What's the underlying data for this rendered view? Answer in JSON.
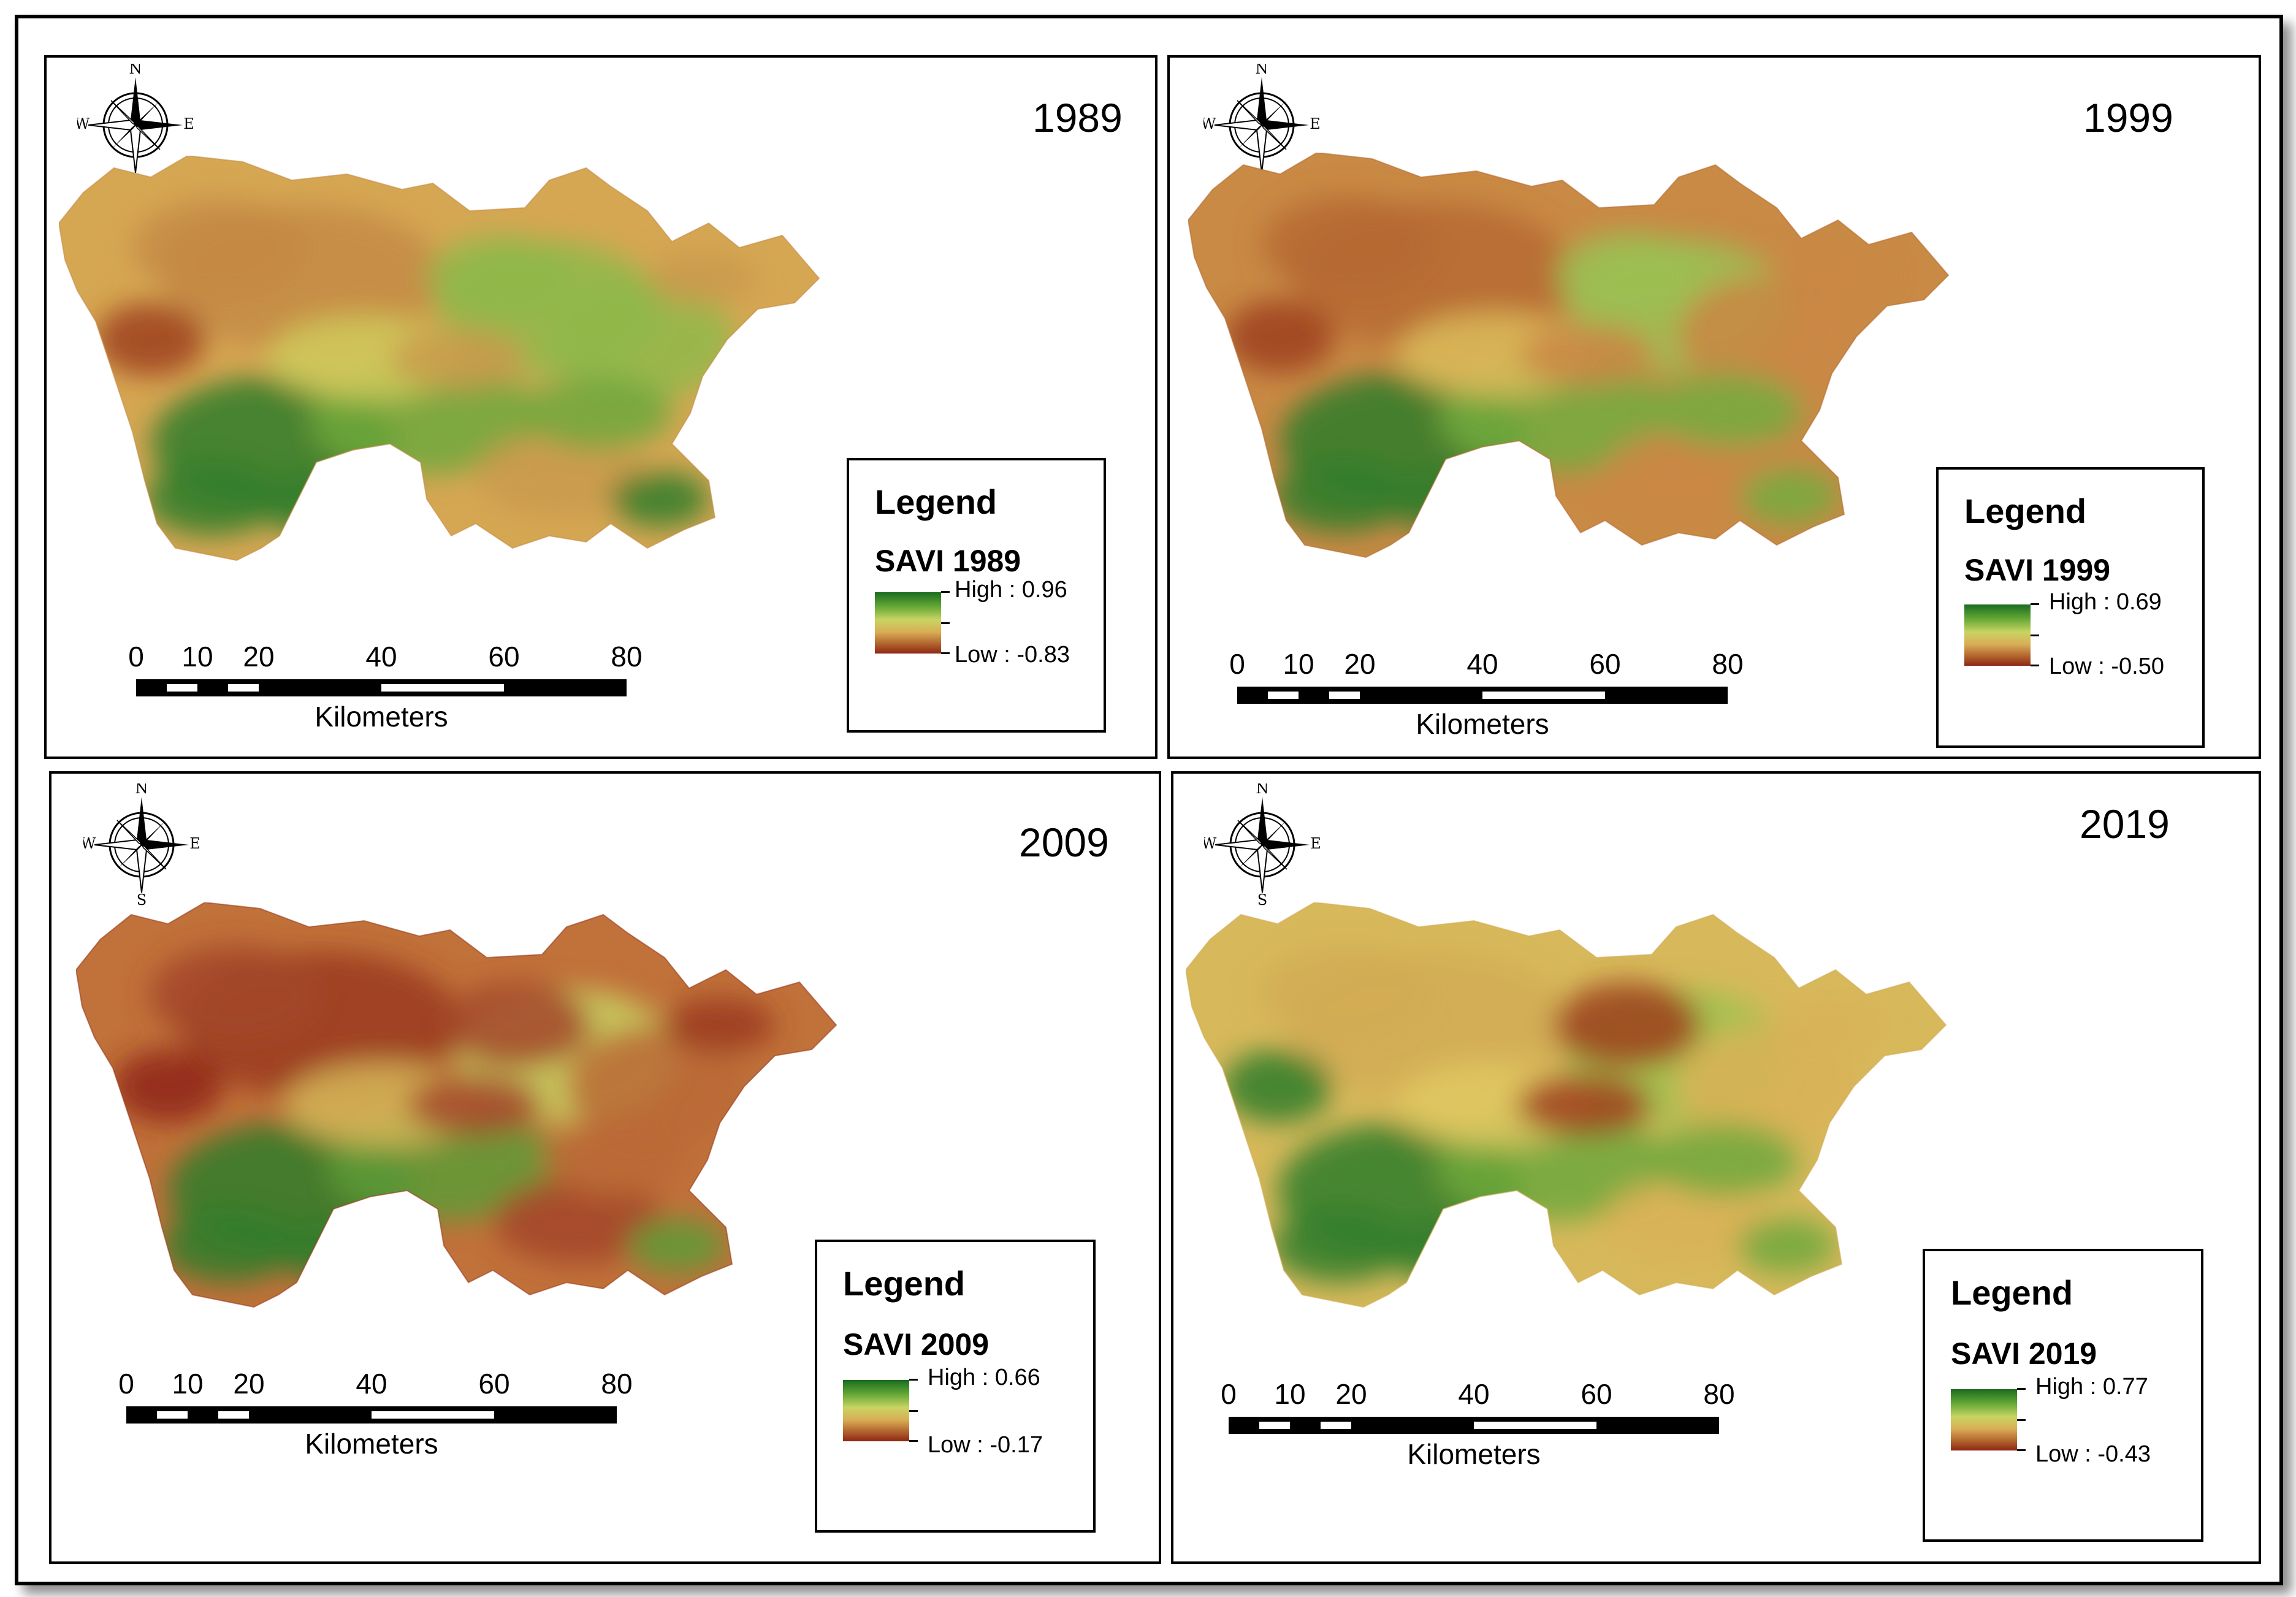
{
  "legend_title": "Legend",
  "unit_label": "Kilometers",
  "compass": {
    "n": "N",
    "s": "S",
    "e": "E",
    "w": "W"
  },
  "scale_ticks": [
    "0",
    "10",
    "20",
    "40",
    "60",
    "80"
  ],
  "panels": [
    {
      "year": "1989",
      "layer": "SAVI 1989",
      "high": "High : 0.96",
      "low": "Low : -0.83"
    },
    {
      "year": "1999",
      "layer": "SAVI 1999",
      "high": "High : 0.69",
      "low": "Low : -0.50"
    },
    {
      "year": "2009",
      "layer": "SAVI 2009",
      "high": "High : 0.66",
      "low": "Low : -0.17"
    },
    {
      "year": "2019",
      "layer": "SAVI 2019",
      "high": "High : 0.77",
      "low": "Low : -0.43"
    }
  ],
  "colors": {
    "high": "#1a6b1e",
    "mid": "#c8d463",
    "low": "#8e2714"
  }
}
